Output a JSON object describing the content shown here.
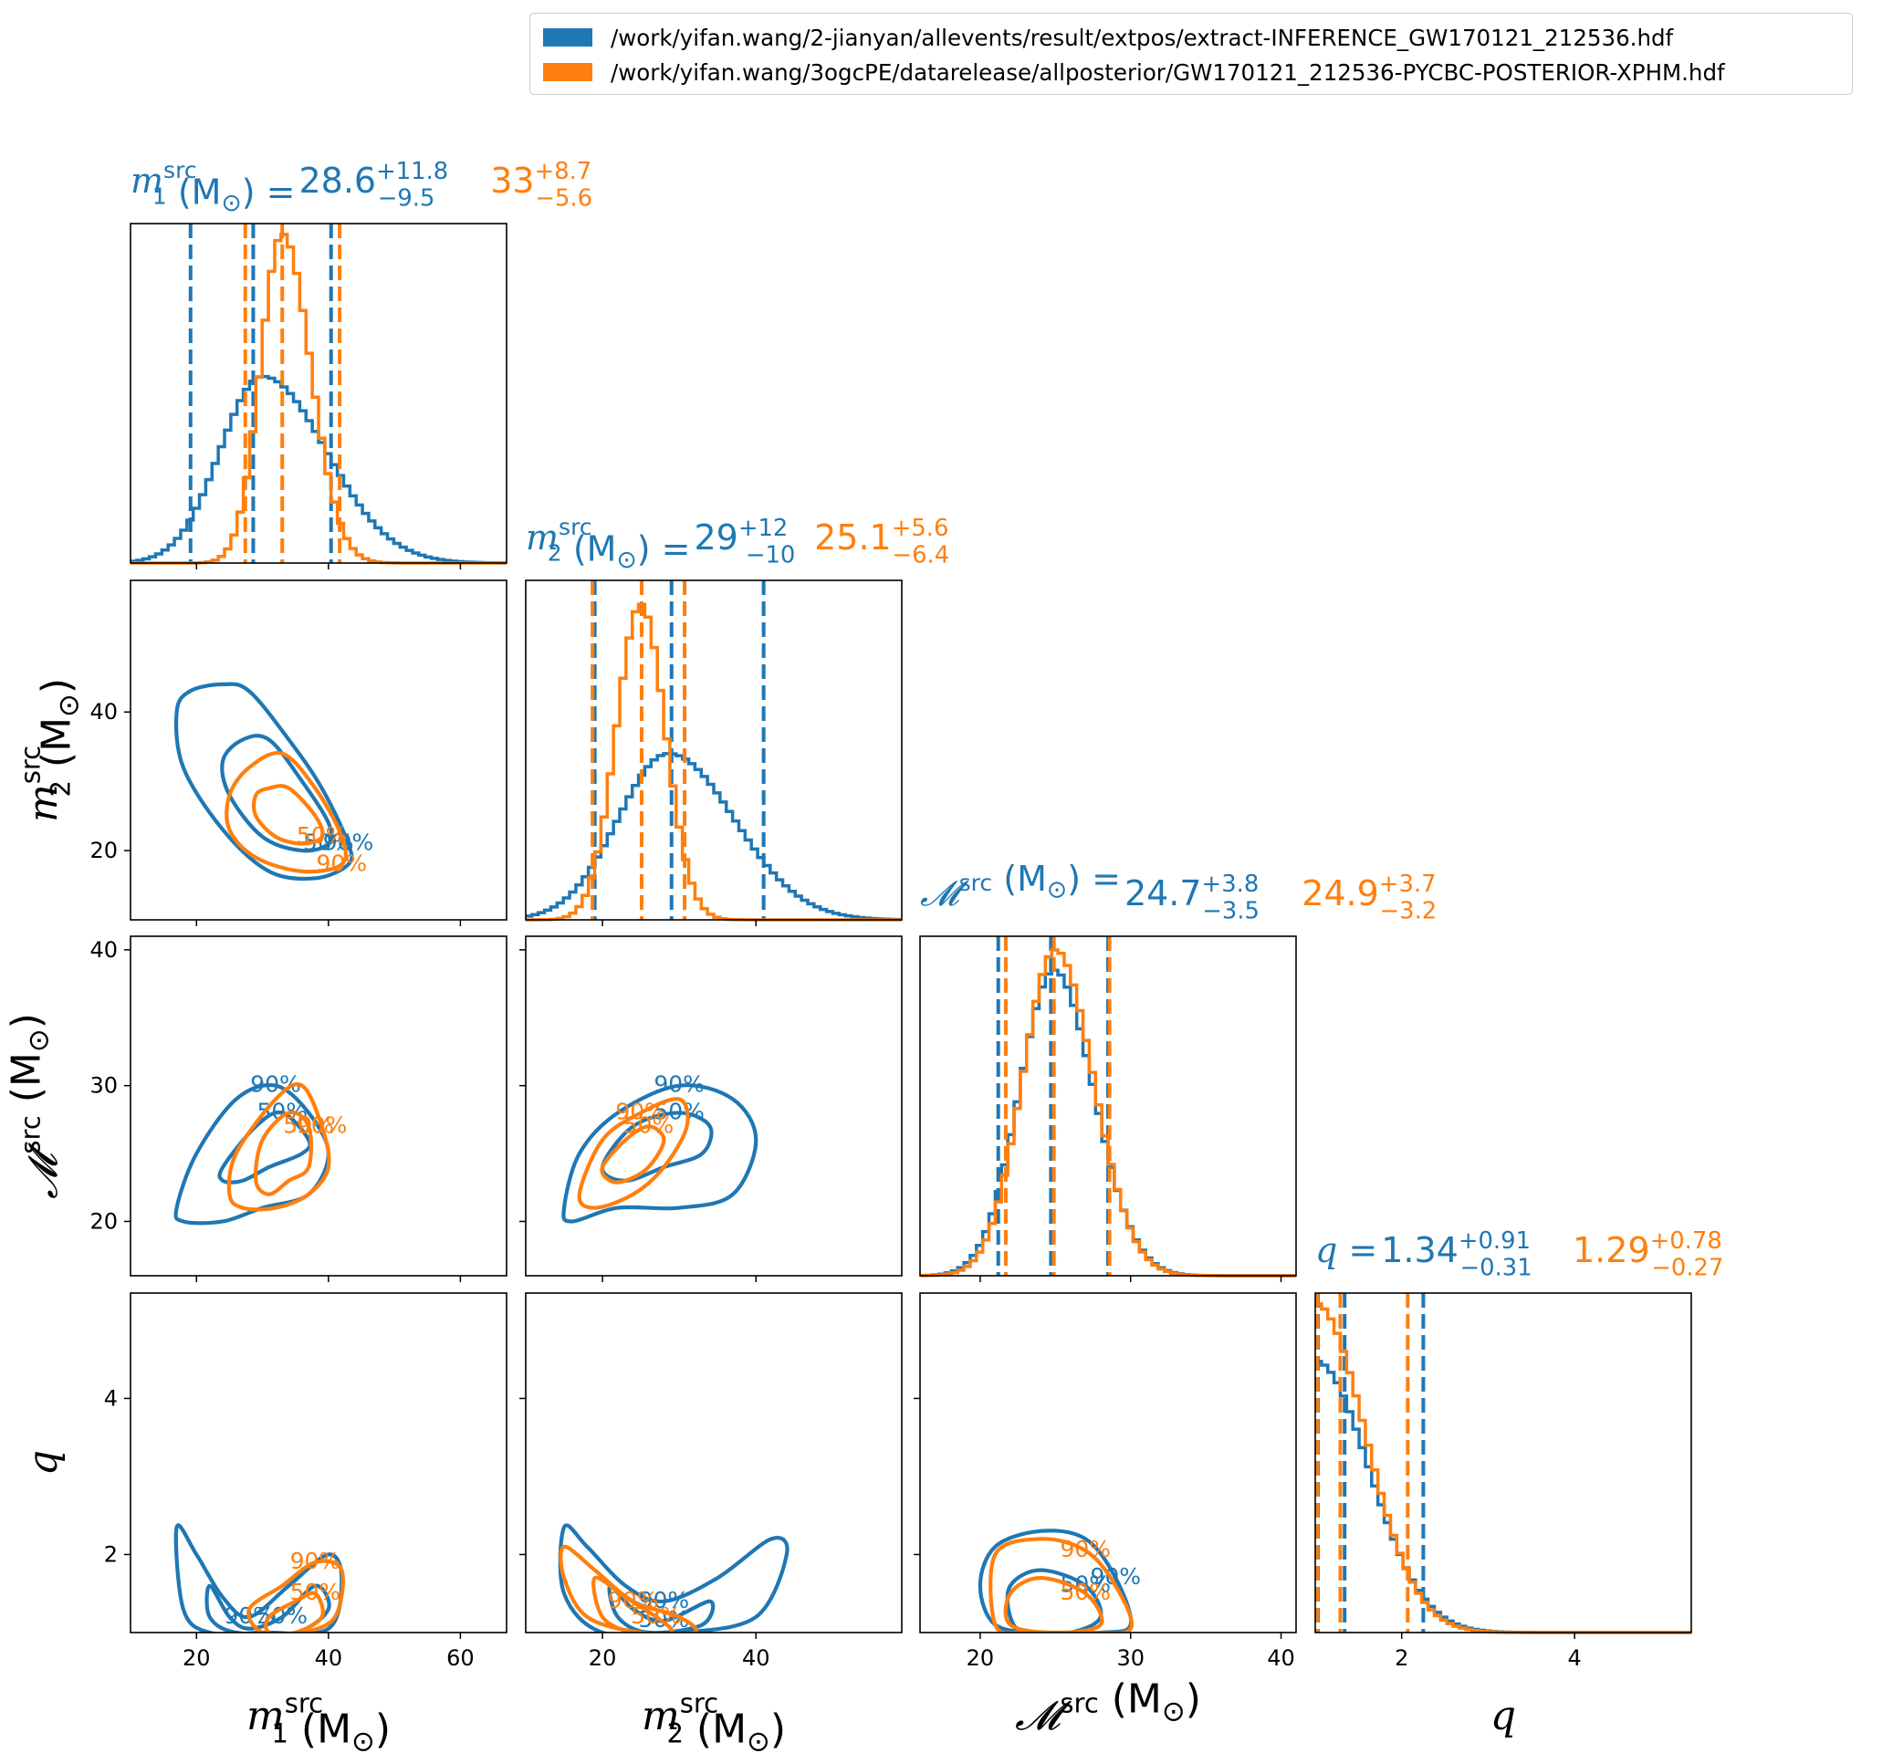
{
  "colors": {
    "blue": "#1f77b4",
    "orange": "#ff7f0e"
  },
  "legend": {
    "placement": "top-right",
    "items": [
      {
        "label": "/work/yifan.wang/2-jianyan/allevents/result/extpos/extract-INFERENCE_GW170121_212536.hdf",
        "color": "#1f77b4"
      },
      {
        "label": "/work/yifan.wang/3ogcPE/datarelease/allposterior/GW170121_212536-PYCBC-POSTERIOR-XPHM.hdf",
        "color": "#ff7f0e"
      }
    ]
  },
  "chart_data": {
    "type": "corner",
    "parameters": [
      {
        "key": "m1",
        "sym": "m",
        "sub": "1",
        "sup": "src",
        "unit": "(M",
        "range": [
          10,
          67
        ],
        "ticks": [
          20,
          40,
          60
        ],
        "title_sym": "m",
        "title_sub": "1",
        "blue_stat": {
          "median": "28.6",
          "plus": "+11.8",
          "minus": "−9.5"
        },
        "orange_stat": {
          "median": "33",
          "plus": "+8.7",
          "minus": "−5.6"
        },
        "blue_hist": {
          "mean": 30.0,
          "sd": 6.4,
          "skew": 1.5,
          "peak": 0.55
        },
        "orange_hist": {
          "mean": 33.0,
          "sd": 3.3,
          "skew": 1.3,
          "peak": 0.97
        },
        "blue_quantiles": [
          19.1,
          28.6,
          40.4
        ],
        "orange_quantiles": [
          27.4,
          33.0,
          41.7
        ]
      },
      {
        "key": "m2",
        "sym": "m",
        "sub": "2",
        "sup": "src",
        "unit": "(M",
        "range": [
          10,
          59
        ],
        "ticks": [
          20,
          40
        ],
        "title_sym": "m",
        "title_sub": "2",
        "blue_stat": {
          "median": "29",
          "plus": "+12",
          "minus": "−10"
        },
        "orange_stat": {
          "median": "25.1",
          "plus": "+5.6",
          "minus": "−6.4"
        },
        "blue_hist": {
          "mean": 28.6,
          "sd": 6.6,
          "skew": 1.3,
          "peak": 0.49
        },
        "orange_hist": {
          "mean": 25.0,
          "sd": 3.2,
          "skew": 1.0,
          "peak": 0.93
        },
        "blue_quantiles": [
          19.0,
          29.0,
          41.0
        ],
        "orange_quantiles": [
          18.7,
          25.1,
          30.7
        ]
      },
      {
        "key": "mchirp",
        "sym": "𝓜",
        "sub": "",
        "sup": "src",
        "unit": "(M",
        "range": [
          16,
          41
        ],
        "ticks": [
          20,
          30,
          40
        ],
        "title_sym": "𝓜",
        "title_sub": "",
        "blue_stat": {
          "median": "24.7",
          "plus": "+3.8",
          "minus": "−3.5"
        },
        "orange_stat": {
          "median": "24.9",
          "plus": "+3.7",
          "minus": "−3.2"
        },
        "blue_hist": {
          "mean": 24.9,
          "sd": 2.3,
          "skew": 1.15,
          "peak": 0.9
        },
        "orange_hist": {
          "mean": 25.0,
          "sd": 2.2,
          "skew": 1.15,
          "peak": 0.96
        },
        "blue_quantiles": [
          21.2,
          24.7,
          28.5
        ],
        "orange_quantiles": [
          21.7,
          24.9,
          28.6
        ]
      },
      {
        "key": "q",
        "sym": "q",
        "sub": "",
        "sup": "",
        "unit": "",
        "range": [
          1.0,
          5.35
        ],
        "ticks": [
          2,
          4
        ],
        "title_sym": "q",
        "title_sub": "",
        "blue_stat": {
          "median": "1.34",
          "plus": "+0.91",
          "minus": "−0.31"
        },
        "orange_stat": {
          "median": "1.29",
          "plus": "+0.78",
          "minus": "−0.27"
        },
        "blue_hist": {
          "mean": 1.0,
          "sd": 0.62,
          "skew": 1.0,
          "peak": 0.8,
          "half": true
        },
        "orange_hist": {
          "mean": 1.0,
          "sd": 0.58,
          "skew": 1.0,
          "peak": 0.97,
          "half": true
        },
        "blue_quantiles": [
          1.03,
          1.34,
          2.25
        ],
        "orange_quantiles": [
          1.02,
          1.29,
          2.07
        ]
      }
    ],
    "y_ticks": {
      "m2": [
        20,
        40
      ],
      "m2_range": [
        10,
        59
      ],
      "mchirp": [
        20,
        30,
        40
      ],
      "mchirp_range": [
        16,
        41
      ],
      "q": [
        2,
        4
      ],
      "q_range": [
        1.0,
        5.35
      ]
    },
    "contours": [
      {
        "panel": "m2-m1",
        "series": "blue",
        "level": "90%",
        "label": "90%",
        "points": [
          [
            24,
            44
          ],
          [
            28,
            43
          ],
          [
            34,
            36
          ],
          [
            39,
            29
          ],
          [
            43,
            21
          ],
          [
            43,
            18
          ],
          [
            38,
            16
          ],
          [
            31,
            17
          ],
          [
            24,
            23
          ],
          [
            18,
            32
          ],
          [
            17,
            40
          ],
          [
            19,
            43
          ]
        ]
      },
      {
        "panel": "m2-m1",
        "series": "blue",
        "level": "50%",
        "label": "50%",
        "points": [
          [
            31,
            36
          ],
          [
            36,
            30
          ],
          [
            40,
            24
          ],
          [
            40,
            21
          ],
          [
            36,
            20
          ],
          [
            30,
            22
          ],
          [
            25,
            28
          ],
          [
            24,
            33
          ],
          [
            27,
            36
          ]
        ]
      },
      {
        "panel": "m2-m1",
        "series": "orange",
        "level": "90%",
        "label": "90%",
        "points": [
          [
            33,
            34
          ],
          [
            38,
            29
          ],
          [
            42,
            22
          ],
          [
            42,
            18
          ],
          [
            36,
            17
          ],
          [
            29,
            19
          ],
          [
            25,
            23
          ],
          [
            25,
            28
          ],
          [
            28,
            32
          ]
        ]
      },
      {
        "panel": "m2-m1",
        "series": "orange",
        "level": "50%",
        "label": "50%",
        "points": [
          [
            34,
            29
          ],
          [
            38,
            25
          ],
          [
            39,
            22
          ],
          [
            36,
            21
          ],
          [
            32,
            22
          ],
          [
            29,
            25
          ],
          [
            29,
            28
          ],
          [
            31,
            29
          ]
        ]
      },
      {
        "panel": "mchirp-m1",
        "series": "blue",
        "level": "90%",
        "label": "90%",
        "points": [
          [
            17,
            21
          ],
          [
            20,
            25
          ],
          [
            26,
            29
          ],
          [
            32,
            30
          ],
          [
            37,
            28
          ],
          [
            40,
            25
          ],
          [
            37,
            22
          ],
          [
            30,
            21
          ],
          [
            24,
            20
          ],
          [
            18,
            20
          ]
        ]
      },
      {
        "panel": "mchirp-m1",
        "series": "blue",
        "level": "50%",
        "label": "50%",
        "points": [
          [
            24,
            24
          ],
          [
            29,
            27
          ],
          [
            33,
            28
          ],
          [
            37,
            26
          ],
          [
            36,
            25
          ],
          [
            31,
            24
          ],
          [
            27,
            23
          ],
          [
            24,
            23
          ]
        ]
      },
      {
        "panel": "mchirp-m1",
        "series": "orange",
        "level": "90%",
        "label": "90%",
        "points": [
          [
            26,
            25
          ],
          [
            32,
            29
          ],
          [
            36,
            30
          ],
          [
            39,
            27
          ],
          [
            40,
            24
          ],
          [
            37,
            22
          ],
          [
            32,
            21
          ],
          [
            27,
            21
          ],
          [
            25,
            22
          ]
        ]
      },
      {
        "panel": "mchirp-m1",
        "series": "orange",
        "level": "50%",
        "label": "50%",
        "points": [
          [
            30,
            26
          ],
          [
            34,
            28
          ],
          [
            37,
            27
          ],
          [
            37,
            24
          ],
          [
            34,
            23
          ],
          [
            31,
            22
          ],
          [
            29,
            23
          ]
        ]
      },
      {
        "panel": "mchirp-m2",
        "series": "blue",
        "level": "90%",
        "label": "90%",
        "points": [
          [
            15,
            21
          ],
          [
            17,
            25
          ],
          [
            22,
            28
          ],
          [
            30,
            30
          ],
          [
            37,
            29
          ],
          [
            40,
            26
          ],
          [
            37,
            22
          ],
          [
            30,
            21
          ],
          [
            22,
            21
          ],
          [
            16,
            20
          ]
        ]
      },
      {
        "panel": "mchirp-m2",
        "series": "blue",
        "level": "50%",
        "label": "50%",
        "points": [
          [
            20,
            24
          ],
          [
            24,
            27
          ],
          [
            30,
            28
          ],
          [
            34,
            27
          ],
          [
            33,
            25
          ],
          [
            28,
            24
          ],
          [
            23,
            23
          ]
        ]
      },
      {
        "panel": "mchirp-m2",
        "series": "orange",
        "level": "90%",
        "label": "90%",
        "points": [
          [
            17,
            22
          ],
          [
            20,
            26
          ],
          [
            25,
            28
          ],
          [
            30,
            29
          ],
          [
            31,
            27
          ],
          [
            28,
            24
          ],
          [
            24,
            22
          ],
          [
            19,
            21
          ]
        ]
      },
      {
        "panel": "mchirp-m2",
        "series": "orange",
        "level": "50%",
        "label": "50%",
        "points": [
          [
            20,
            24
          ],
          [
            23,
            26
          ],
          [
            26,
            27
          ],
          [
            28,
            26
          ],
          [
            26,
            24
          ],
          [
            23,
            23
          ],
          [
            21,
            23
          ]
        ]
      },
      {
        "panel": "q-m1",
        "series": "blue",
        "level": "90%",
        "label": "90%",
        "points": [
          [
            17,
            2.35
          ],
          [
            20,
            2.0
          ],
          [
            24,
            1.45
          ],
          [
            28,
            1.2
          ],
          [
            34,
            1.6
          ],
          [
            40,
            2.0
          ],
          [
            42,
            1.7
          ],
          [
            40,
            1.05
          ],
          [
            30,
            1.0
          ],
          [
            22,
            1.0
          ],
          [
            18,
            1.3
          ]
        ]
      },
      {
        "panel": "q-m1",
        "series": "blue",
        "level": "50%",
        "label": "50%",
        "points": [
          [
            22,
            1.6
          ],
          [
            25,
            1.2
          ],
          [
            28,
            1.05
          ],
          [
            33,
            1.2
          ],
          [
            38,
            1.6
          ],
          [
            40,
            1.3
          ],
          [
            35,
            1.0
          ],
          [
            26,
            1.0
          ],
          [
            22,
            1.2
          ]
        ]
      },
      {
        "panel": "q-m1",
        "series": "orange",
        "level": "90%",
        "label": "90%",
        "points": [
          [
            28,
            1.3
          ],
          [
            33,
            1.6
          ],
          [
            38,
            1.9
          ],
          [
            42,
            1.8
          ],
          [
            41,
            1.2
          ],
          [
            36,
            1.0
          ],
          [
            30,
            1.0
          ]
        ]
      },
      {
        "panel": "q-m1",
        "series": "orange",
        "level": "50%",
        "label": "50%",
        "points": [
          [
            31,
            1.2
          ],
          [
            35,
            1.4
          ],
          [
            38,
            1.5
          ],
          [
            39,
            1.2
          ],
          [
            35,
            1.0
          ],
          [
            31,
            1.0
          ]
        ]
      },
      {
        "panel": "q-m2",
        "series": "blue",
        "level": "90%",
        "label": "90%",
        "points": [
          [
            15,
            2.35
          ],
          [
            18,
            2.1
          ],
          [
            23,
            1.6
          ],
          [
            28,
            1.4
          ],
          [
            35,
            1.7
          ],
          [
            42,
            2.2
          ],
          [
            44,
            2.0
          ],
          [
            40,
            1.2
          ],
          [
            30,
            1.0
          ],
          [
            20,
            1.0
          ],
          [
            15,
            1.5
          ]
        ]
      },
      {
        "panel": "q-m2",
        "series": "blue",
        "level": "50%",
        "label": "50%",
        "points": [
          [
            21,
            1.6
          ],
          [
            24,
            1.3
          ],
          [
            28,
            1.15
          ],
          [
            34,
            1.4
          ],
          [
            33,
            1.1
          ],
          [
            26,
            1.0
          ],
          [
            22,
            1.2
          ]
        ]
      },
      {
        "panel": "q-m2",
        "series": "orange",
        "level": "90%",
        "label": "90%",
        "points": [
          [
            15,
            2.1
          ],
          [
            19,
            1.8
          ],
          [
            24,
            1.4
          ],
          [
            30,
            1.2
          ],
          [
            32,
            1.0
          ],
          [
            25,
            1.0
          ],
          [
            18,
            1.2
          ],
          [
            15,
            1.7
          ]
        ]
      },
      {
        "panel": "q-m2",
        "series": "orange",
        "level": "50%",
        "label": "50%",
        "points": [
          [
            19,
            1.7
          ],
          [
            23,
            1.45
          ],
          [
            27,
            1.2
          ],
          [
            29,
            1.0
          ],
          [
            24,
            1.0
          ],
          [
            20,
            1.2
          ]
        ]
      },
      {
        "panel": "q-mchirp",
        "series": "blue",
        "level": "90%",
        "label": "90%",
        "points": [
          [
            21,
            2.1
          ],
          [
            24,
            2.3
          ],
          [
            27,
            2.2
          ],
          [
            29,
            1.7
          ],
          [
            30,
            1.1
          ],
          [
            28,
            1.0
          ],
          [
            24,
            1.0
          ],
          [
            21,
            1.1
          ],
          [
            20,
            1.6
          ]
        ]
      },
      {
        "panel": "q-mchirp",
        "series": "blue",
        "level": "50%",
        "label": "50%",
        "points": [
          [
            22,
            1.6
          ],
          [
            24,
            1.8
          ],
          [
            27,
            1.6
          ],
          [
            28,
            1.2
          ],
          [
            26,
            1.0
          ],
          [
            23,
            1.0
          ],
          [
            22,
            1.2
          ]
        ]
      },
      {
        "panel": "q-mchirp",
        "series": "orange",
        "level": "90%",
        "label": "90%",
        "points": [
          [
            21,
            2.0
          ],
          [
            24,
            2.2
          ],
          [
            27,
            2.05
          ],
          [
            29,
            1.6
          ],
          [
            30,
            1.05
          ],
          [
            27,
            1.0
          ],
          [
            23,
            1.0
          ],
          [
            21,
            1.1
          ]
        ]
      },
      {
        "panel": "q-mchirp",
        "series": "orange",
        "level": "50%",
        "label": "50%",
        "points": [
          [
            22,
            1.5
          ],
          [
            24,
            1.7
          ],
          [
            27,
            1.5
          ],
          [
            28,
            1.1
          ],
          [
            25,
            1.0
          ],
          [
            22,
            1.1
          ]
        ]
      }
    ]
  }
}
